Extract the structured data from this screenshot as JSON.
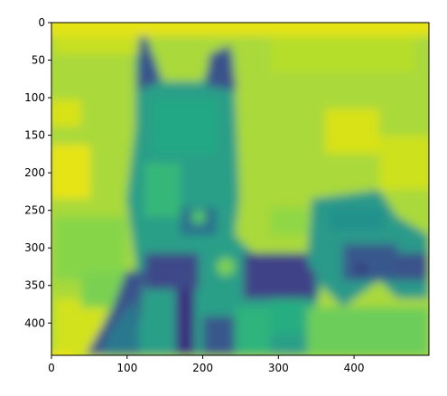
{
  "chart_data": {
    "type": "heatmap",
    "title": "",
    "xlabel": "",
    "ylabel": "",
    "colormap": "viridis",
    "xlim": [
      0,
      499
    ],
    "ylim": [
      443,
      0
    ],
    "x_ticks": [
      0,
      100,
      200,
      300,
      400
    ],
    "y_ticks": [
      0,
      50,
      100,
      150,
      200,
      250,
      300,
      350,
      400
    ],
    "grid": false,
    "description_regions": [
      {
        "label": "dog silhouette",
        "x_range": [
          100,
          300
        ],
        "y_range": [
          20,
          443
        ]
      },
      {
        "label": "second dog right",
        "x_range": [
          340,
          499
        ],
        "y_range": [
          210,
          380
        ]
      }
    ]
  }
}
